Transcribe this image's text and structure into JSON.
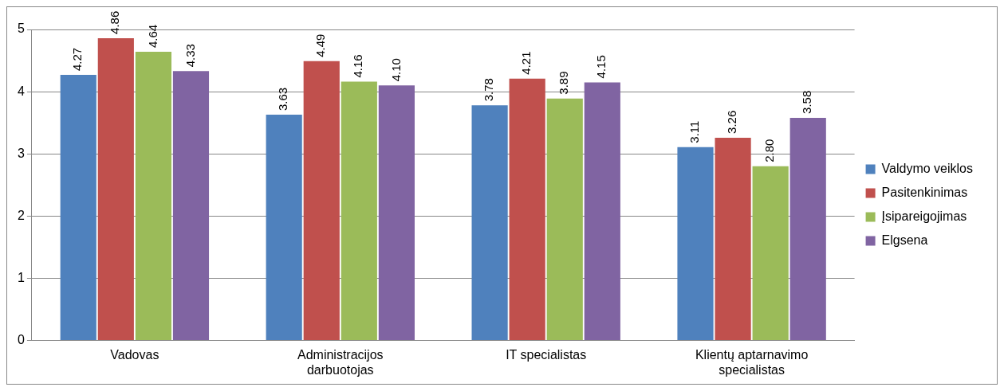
{
  "chart_data": {
    "type": "bar",
    "categories": [
      "Vadovas",
      "Administracijos darbuotojas",
      "IT specialistas",
      "Klientų aptarnavimo specialistas"
    ],
    "series": [
      {
        "name": "Valdymo veiklos",
        "color": "#4f81bd",
        "values": [
          4.27,
          3.63,
          3.78,
          3.11
        ],
        "value_labels": [
          "4.27",
          "3.63",
          "3.78",
          "3.11"
        ]
      },
      {
        "name": "Pasitenkinimas",
        "color": "#c0504d",
        "values": [
          4.86,
          4.49,
          4.21,
          3.26
        ],
        "value_labels": [
          "4.86",
          "4.49",
          "4.21",
          "3.26"
        ]
      },
      {
        "name": "Įsipareigojimas",
        "color": "#9bbb59",
        "values": [
          4.64,
          4.16,
          3.89,
          2.8
        ],
        "value_labels": [
          "4.64",
          "4.16",
          "3.89",
          "2.80"
        ]
      },
      {
        "name": "Elgsena",
        "color": "#8064a2",
        "values": [
          4.33,
          4.1,
          4.15,
          3.58
        ],
        "value_labels": [
          "4.33",
          "4.10",
          "4.15",
          "3.58"
        ]
      }
    ],
    "ylim": [
      0,
      5
    ],
    "yticks": [
      0,
      1,
      2,
      3,
      4,
      5
    ],
    "grid": "y",
    "legend": "right"
  }
}
